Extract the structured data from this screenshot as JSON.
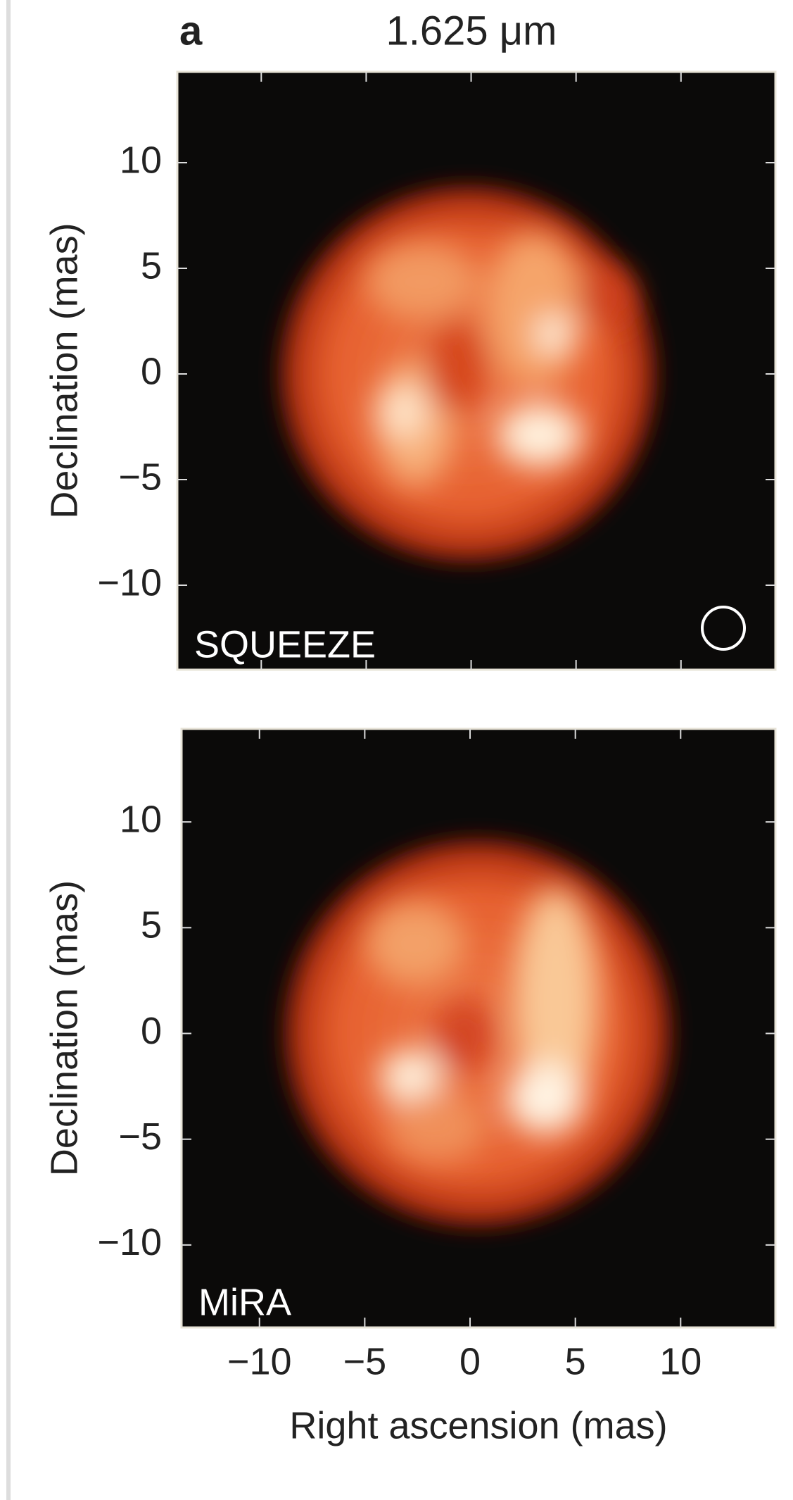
{
  "chart_data": [
    {
      "type": "image",
      "figure_label": "a",
      "title": "1.625 μm",
      "panel_label": "SQUEEZE",
      "y_label": "Declination (mas)",
      "xlim": [
        -14,
        14.5
      ],
      "ylim": [
        -14,
        14.3
      ],
      "xticks": [
        -10,
        -5,
        0,
        5,
        10
      ],
      "yticks": [
        {
          "value": -10,
          "label": "−10"
        },
        {
          "value": -5,
          "label": "−5"
        },
        0,
        5,
        10
      ]
    },
    {
      "type": "image",
      "panel_label": "MiRA",
      "x_label": "Right ascension (mas)",
      "y_label": "Declination (mas)",
      "xlim": [
        -13.7,
        14.5
      ],
      "ylim": [
        -13.9,
        14.4
      ],
      "xticks": [
        {
          "value": -10,
          "label": "−10"
        },
        {
          "value": -5,
          "label": "−5"
        },
        0,
        5,
        10
      ],
      "yticks": [
        {
          "value": -10,
          "label": "−10"
        },
        {
          "value": -5,
          "label": "−5"
        },
        0,
        5,
        10
      ]
    }
  ]
}
